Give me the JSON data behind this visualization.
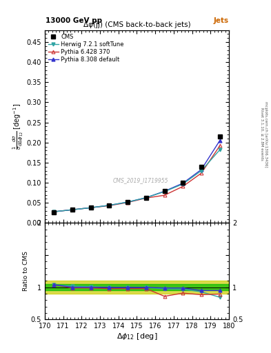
{
  "title_top": "13000 GeV pp",
  "title_right": "Jets",
  "plot_title": "Δφ(jj) (CMS back-to-back jets)",
  "watermark": "CMS_2019_I1719955",
  "ylabel_main": "$\\frac{1}{\\sigma}\\frac{d\\sigma}{d\\Delta\\phi_{12}}$ [deg$^{-1}$]",
  "ylabel_ratio": "Ratio to CMS",
  "xlabel": "$\\Delta\\phi_{12}$ [deg]",
  "right_label_top": "Rivet 3.1.10, ≥ 2.8M events",
  "right_label_bot": "mcplots.cern.ch [arXiv:1306.3436]",
  "xdata": [
    170.5,
    171.5,
    172.5,
    173.5,
    174.5,
    175.5,
    176.5,
    177.5,
    178.5,
    179.5
  ],
  "cms_y": [
    0.027,
    0.033,
    0.038,
    0.044,
    0.052,
    0.063,
    0.08,
    0.1,
    0.14,
    0.215
  ],
  "herwig_y": [
    0.028,
    0.033,
    0.038,
    0.044,
    0.052,
    0.063,
    0.078,
    0.097,
    0.13,
    0.182
  ],
  "pythia6_y": [
    0.028,
    0.033,
    0.038,
    0.043,
    0.051,
    0.062,
    0.069,
    0.091,
    0.124,
    0.192
  ],
  "pythia8_y": [
    0.028,
    0.033,
    0.038,
    0.044,
    0.052,
    0.063,
    0.079,
    0.099,
    0.133,
    0.205
  ],
  "herwig_ratio": [
    1.04,
    1.02,
    1.01,
    1.0,
    1.0,
    1.0,
    0.975,
    0.97,
    0.93,
    0.845
  ],
  "pythia6_ratio": [
    1.04,
    0.99,
    0.99,
    0.98,
    0.98,
    0.98,
    0.86,
    0.91,
    0.885,
    0.895
  ],
  "pythia8_ratio": [
    1.04,
    1.0,
    1.0,
    1.0,
    1.0,
    1.0,
    0.99,
    0.99,
    0.95,
    0.95
  ],
  "cms_color": "#000000",
  "herwig_color": "#2fa4a4",
  "pythia6_color": "#cc3333",
  "pythia8_color": "#3333cc",
  "band_yellow": "#cccc00",
  "band_green": "#00bb00",
  "xlim": [
    170,
    180
  ],
  "ylim_main": [
    0,
    0.48
  ],
  "ylim_ratio": [
    0.5,
    2.0
  ],
  "yticks_main": [
    0.0,
    0.05,
    0.1,
    0.15,
    0.2,
    0.25,
    0.3,
    0.35,
    0.4,
    0.45
  ],
  "yticks_ratio": [
    0.5,
    1.0,
    1.5,
    2.0
  ],
  "ytick_ratio_labels": [
    "0.5",
    "1",
    "",
    "2"
  ]
}
